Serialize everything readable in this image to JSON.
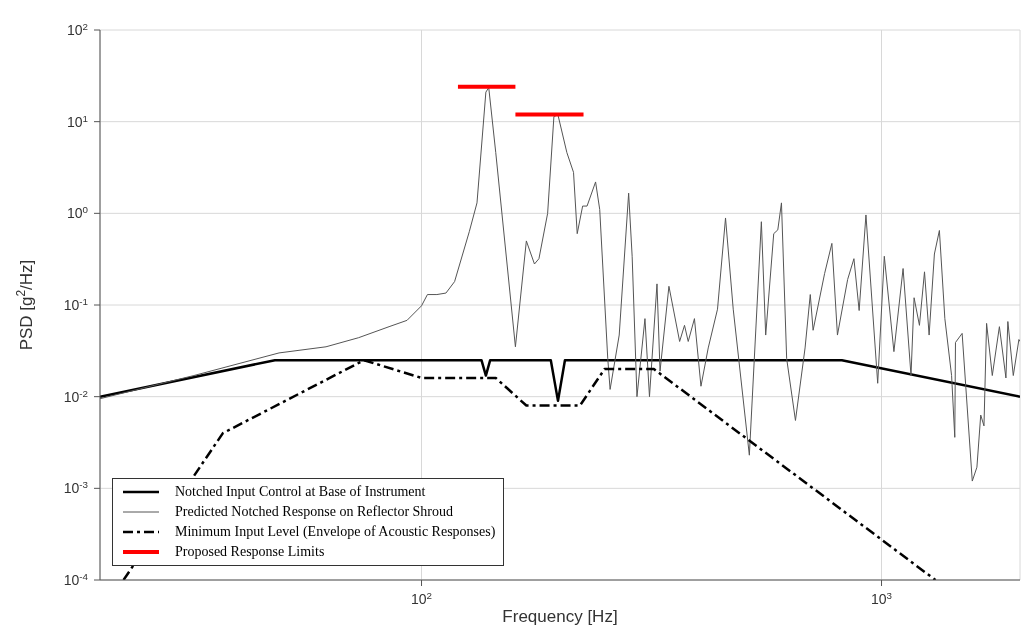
{
  "chart_data": {
    "type": "line",
    "xlabel": "Frequency [Hz]",
    "ylabel": "PSD [g$^{2}$/Hz]",
    "log": "xy",
    "grid": true,
    "legend": "bottom left",
    "marker": "none",
    "xlim": [
      20,
      2000
    ],
    "ylim": [
      0.0001,
      100
    ],
    "xticks": [
      {
        "value": 100,
        "label": "10$^{2}$"
      },
      {
        "value": 1000,
        "label": "10$^{3}$"
      }
    ],
    "yticks": [
      {
        "value": 0.0001,
        "label": "10$^{-4}$"
      },
      {
        "value": 0.001,
        "label": "10$^{-3}$"
      },
      {
        "value": 0.01,
        "label": "10$^{-2}$"
      },
      {
        "value": 0.1,
        "label": "10$^{-1}$"
      },
      {
        "value": 1,
        "label": "10$^{0}$"
      },
      {
        "value": 10,
        "label": "10$^{1}$"
      },
      {
        "value": 100,
        "label": "10$^{2}$"
      }
    ],
    "series": [
      {
        "name": "Notched Input Control at Base of Instrument",
        "color": "#000000",
        "line_style": "solid",
        "x": [
          20,
          48,
          135,
          138,
          141,
          191,
          198,
          205,
          820,
          2000
        ],
        "values": [
          0.01,
          0.025,
          0.025,
          0.017,
          0.025,
          0.025,
          0.009,
          0.025,
          0.025,
          0.01
        ]
      },
      {
        "name": "Predicted Notched Response on Reflector Shroud",
        "color": "#555555",
        "line_style": "solid",
        "x": [
          20,
          32,
          49,
          62,
          73,
          85,
          93,
          100,
          103,
          108,
          113,
          118,
          127,
          132,
          138,
          140,
          145,
          160,
          169,
          176,
          180,
          188,
          194,
          198,
          207,
          214,
          218,
          224,
          229,
          239,
          244,
          254,
          257,
          269,
          282,
          287,
          294,
          306,
          313,
          325,
          330,
          345,
          364,
          373,
          380,
          392,
          405,
          420,
          440,
          458,
          476,
          516,
          548,
          560,
          583,
          595,
          606,
          622,
          650,
          682,
          700,
          710,
          752,
          780,
          802,
          844,
          871,
          894,
          925,
          981,
          1014,
          1064,
          1114,
          1159,
          1177,
          1209,
          1240,
          1269,
          1303,
          1336,
          1373,
          1420,
          1443,
          1448,
          1497,
          1575,
          1612,
          1643,
          1670,
          1692,
          1741,
          1804,
          1864,
          1882,
          1934,
          1989,
          2000
        ],
        "values": [
          0.0095,
          0.017,
          0.03,
          0.035,
          0.044,
          0.058,
          0.068,
          0.098,
          0.13,
          0.13,
          0.135,
          0.18,
          0.63,
          1.3,
          21,
          23.5,
          4.6,
          0.035,
          0.5,
          0.28,
          0.32,
          1.0,
          11.4,
          11.8,
          4.6,
          2.8,
          0.6,
          1.2,
          1.2,
          2.2,
          1.1,
          0.026,
          0.012,
          0.047,
          1.66,
          0.34,
          0.01,
          0.071,
          0.01,
          0.17,
          0.019,
          0.16,
          0.04,
          0.06,
          0.04,
          0.071,
          0.013,
          0.034,
          0.09,
          0.89,
          0.09,
          0.0023,
          0.81,
          0.047,
          0.6,
          0.66,
          1.3,
          0.026,
          0.0055,
          0.034,
          0.13,
          0.053,
          0.22,
          0.47,
          0.047,
          0.19,
          0.32,
          0.087,
          0.96,
          0.014,
          0.34,
          0.031,
          0.25,
          0.017,
          0.12,
          0.06,
          0.23,
          0.047,
          0.36,
          0.65,
          0.071,
          0.017,
          0.0036,
          0.039,
          0.049,
          0.0012,
          0.0017,
          0.0063,
          0.0048,
          0.063,
          0.017,
          0.058,
          0.016,
          0.066,
          0.017,
          0.042,
          0.04
        ]
      },
      {
        "name": "Minimum Input Level (Envelope of Acoustic Responses)",
        "color": "#000000",
        "line_style": "dashed",
        "x": [
          22.5,
          37,
          75,
          100,
          145,
          169,
          221,
          250,
          320,
          1310
        ],
        "values": [
          0.0001,
          0.004,
          0.025,
          0.016,
          0.016,
          0.008,
          0.008,
          0.02,
          0.02,
          0.0001
        ]
      },
      {
        "name": "Proposed Response Limits",
        "color": "#ff0000",
        "line_style": "solid",
        "x": [
          120,
          160
        ],
        "values": [
          24,
          24
        ]
      },
      {
        "color": "#ff0000",
        "line_style": "solid",
        "x": [
          160,
          225
        ],
        "values": [
          12,
          12
        ]
      }
    ]
  }
}
